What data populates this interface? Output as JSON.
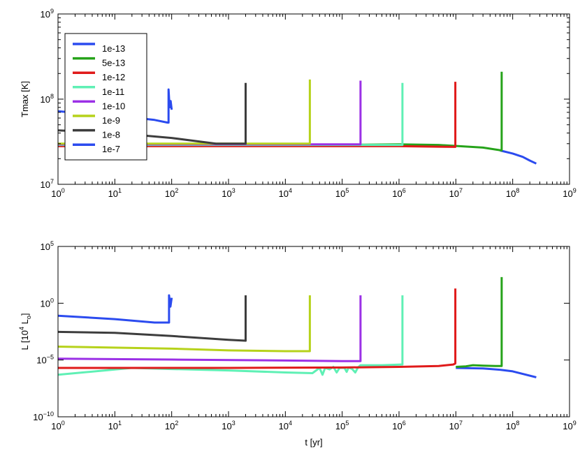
{
  "chart_data": [
    {
      "type": "line",
      "ylabel": "Tmax [K]",
      "xscale": "log",
      "yscale": "log",
      "xlim": [
        1,
        1000000000
      ],
      "ylim": [
        10000000,
        1000000000
      ],
      "x_ticks": [
        {
          "base": "10",
          "exp": "0"
        },
        {
          "base": "10",
          "exp": "1"
        },
        {
          "base": "10",
          "exp": "2"
        },
        {
          "base": "10",
          "exp": "3"
        },
        {
          "base": "10",
          "exp": "4"
        },
        {
          "base": "10",
          "exp": "5"
        },
        {
          "base": "10",
          "exp": "6"
        },
        {
          "base": "10",
          "exp": "7"
        },
        {
          "base": "10",
          "exp": "8"
        },
        {
          "base": "10",
          "exp": "9"
        }
      ],
      "y_ticks": [
        {
          "base": "10",
          "exp": "7"
        },
        {
          "base": "10",
          "exp": "8"
        },
        {
          "base": "10",
          "exp": "9"
        }
      ],
      "legend": {
        "position": "upper-left",
        "entries": [
          {
            "label": "1e-13",
            "color": "#2b4bef"
          },
          {
            "label": "5e-13",
            "color": "#26a31a"
          },
          {
            "label": "1e-12",
            "color": "#e01a1a"
          },
          {
            "label": "1e-11",
            "color": "#5ff0b5"
          },
          {
            "label": "1e-10",
            "color": "#9b30e6"
          },
          {
            "label": "1e-9",
            "color": "#b6d21b"
          },
          {
            "label": "1e-8",
            "color": "#3d3d3d"
          },
          {
            "label": "1e-7",
            "color": "#2b4bef"
          }
        ]
      },
      "series": [
        {
          "name": "1e-13",
          "color": "#2b4bef",
          "points": [
            [
              60000000,
              25000000
            ],
            [
              100000000,
              23000000
            ],
            [
              150000000,
              21000000
            ],
            [
              200000000,
              19000000
            ],
            [
              260000000,
              17500000
            ]
          ]
        },
        {
          "name": "5e-13",
          "color": "#26a31a",
          "points": [
            [
              100000,
              29000000
            ],
            [
              1000000,
              29500000
            ],
            [
              5000000,
              29000000
            ],
            [
              30000000,
              27000000
            ],
            [
              64000000,
              25000000
            ],
            [
              64000000,
              210000000
            ]
          ]
        },
        {
          "name": "1e-12",
          "color": "#e01a1a",
          "points": [
            [
              1,
              28000000
            ],
            [
              1000000,
              28000000
            ],
            [
              9800000,
              27500000
            ],
            [
              9800000,
              160000000
            ]
          ]
        },
        {
          "name": "1e-11",
          "color": "#5ff0b5",
          "points": [
            [
              1,
              29000000
            ],
            [
              1000000,
              29000000
            ],
            [
              1150000,
              29000000
            ],
            [
              1150000,
              155000000
            ]
          ]
        },
        {
          "name": "1e-10",
          "color": "#9b30e6",
          "points": [
            [
              1,
              29500000
            ],
            [
              100000,
              29500000
            ],
            [
              210000,
              29500000
            ],
            [
              210000,
              165000000
            ]
          ]
        },
        {
          "name": "1e-9",
          "color": "#b6d21b",
          "points": [
            [
              1,
              30000000
            ],
            [
              10000,
              30000000
            ],
            [
              27000,
              30000000
            ],
            [
              27000,
              170000000
            ]
          ]
        },
        {
          "name": "1e-8",
          "color": "#3d3d3d",
          "points": [
            [
              1,
              43000000
            ],
            [
              10,
              40000000
            ],
            [
              100,
              35000000
            ],
            [
              600,
              30000000
            ],
            [
              2000,
              30000000
            ],
            [
              2000,
              155000000
            ]
          ]
        },
        {
          "name": "1e-7",
          "color": "#2b4bef",
          "points": [
            [
              1,
              72000000
            ],
            [
              10,
              64000000
            ],
            [
              50,
              57000000
            ],
            [
              85,
              53000000
            ],
            [
              88,
              53000000
            ],
            [
              88,
              130000000
            ],
            [
              92,
              80000000
            ],
            [
              96,
              95000000
            ],
            [
              100,
              75000000
            ]
          ]
        }
      ]
    },
    {
      "type": "line",
      "xlabel": "t [yr]",
      "ylabel": "L [10⁴ Lₒ]",
      "ylabel_parts": {
        "prefix": "L [10",
        "exp": "4",
        "mid": " L",
        "sub": "o",
        "suffix": "]"
      },
      "xscale": "log",
      "yscale": "log",
      "xlim": [
        1,
        1000000000
      ],
      "ylim": [
        1e-10,
        100000
      ],
      "x_ticks": [
        {
          "base": "10",
          "exp": "0"
        },
        {
          "base": "10",
          "exp": "1"
        },
        {
          "base": "10",
          "exp": "2"
        },
        {
          "base": "10",
          "exp": "3"
        },
        {
          "base": "10",
          "exp": "4"
        },
        {
          "base": "10",
          "exp": "5"
        },
        {
          "base": "10",
          "exp": "6"
        },
        {
          "base": "10",
          "exp": "7"
        },
        {
          "base": "10",
          "exp": "8"
        },
        {
          "base": "10",
          "exp": "9"
        }
      ],
      "y_ticks": [
        {
          "base": "10",
          "exp": "−10"
        },
        {
          "base": "10",
          "exp": "−5"
        },
        {
          "base": "10",
          "exp": "0"
        },
        {
          "base": "10",
          "exp": "5"
        }
      ],
      "series": [
        {
          "name": "1e-13",
          "color": "#2b4bef",
          "points": [
            [
              10000000,
              2e-06
            ],
            [
              30000000,
              1.8e-06
            ],
            [
              60000000,
              1.4e-06
            ],
            [
              100000000,
              1e-06
            ],
            [
              260000000,
              3e-07
            ]
          ]
        },
        {
          "name": "1e-11",
          "color": "#5ff0b5",
          "points": [
            [
              1,
              5e-07
            ],
            [
              20,
              2e-06
            ],
            [
              100,
              1.6e-06
            ],
            [
              1000,
              1.2e-06
            ],
            [
              10000,
              8e-07
            ],
            [
              30000,
              7e-07
            ],
            [
              40000,
              2e-06
            ],
            [
              45000,
              5e-07
            ],
            [
              50000,
              2e-06
            ],
            [
              60000,
              1.5e-06
            ],
            [
              70000,
              2.5e-06
            ],
            [
              80000,
              8e-07
            ],
            [
              90000,
              2e-06
            ],
            [
              110000,
              2e-06
            ],
            [
              120000,
              9e-07
            ],
            [
              130000,
              2.2e-06
            ],
            [
              150000,
              1.6e-06
            ],
            [
              170000,
              8e-07
            ],
            [
              190000,
              2.2e-06
            ],
            [
              210000,
              3.5e-06
            ],
            [
              500000,
              3.5e-06
            ],
            [
              1100000,
              4e-06
            ],
            [
              1150000,
              4e-06
            ],
            [
              1150000,
              5
            ]
          ]
        },
        {
          "name": "1e-12",
          "color": "#e01a1a",
          "points": [
            [
              1,
              2e-06
            ],
            [
              1000,
              2e-06
            ],
            [
              100000,
              2.2e-06
            ],
            [
              1000000,
              2.5e-06
            ],
            [
              5000000,
              3e-06
            ],
            [
              9000000,
              4e-06
            ],
            [
              9800000,
              5e-06
            ],
            [
              9800000,
              20
            ]
          ]
        },
        {
          "name": "5e-13",
          "color": "#26a31a",
          "points": [
            [
              10000000,
              2.5e-06
            ],
            [
              15000000,
              2.8e-06
            ],
            [
              20000000,
              3.5e-06
            ],
            [
              30000000,
              3.2e-06
            ],
            [
              50000000,
              3e-06
            ],
            [
              64000000,
              3e-06
            ],
            [
              64000000,
              200
            ]
          ]
        },
        {
          "name": "1e-10",
          "color": "#9b30e6",
          "points": [
            [
              1,
              1.3e-05
            ],
            [
              100,
              1.1e-05
            ],
            [
              10000,
              9e-06
            ],
            [
              100000,
              8e-06
            ],
            [
              210000,
              8e-06
            ],
            [
              210000,
              5
            ]
          ]
        },
        {
          "name": "1e-9",
          "color": "#b6d21b",
          "points": [
            [
              1,
              0.00015
            ],
            [
              100,
              0.0001
            ],
            [
              1000,
              7e-05
            ],
            [
              10000,
              6e-05
            ],
            [
              27000,
              6e-05
            ],
            [
              27000,
              5
            ]
          ]
        },
        {
          "name": "1e-8",
          "color": "#3d3d3d",
          "points": [
            [
              1,
              0.003
            ],
            [
              10,
              0.0025
            ],
            [
              100,
              0.0013
            ],
            [
              1000,
              0.0006
            ],
            [
              2000,
              0.0005
            ],
            [
              2000,
              5
            ]
          ]
        },
        {
          "name": "1e-7",
          "color": "#2b4bef",
          "points": [
            [
              1,
              0.08
            ],
            [
              10,
              0.04
            ],
            [
              50,
              0.02
            ],
            [
              90,
              0.02
            ],
            [
              90,
              5
            ],
            [
              95,
              0.5
            ],
            [
              100,
              3
            ]
          ]
        }
      ]
    }
  ]
}
